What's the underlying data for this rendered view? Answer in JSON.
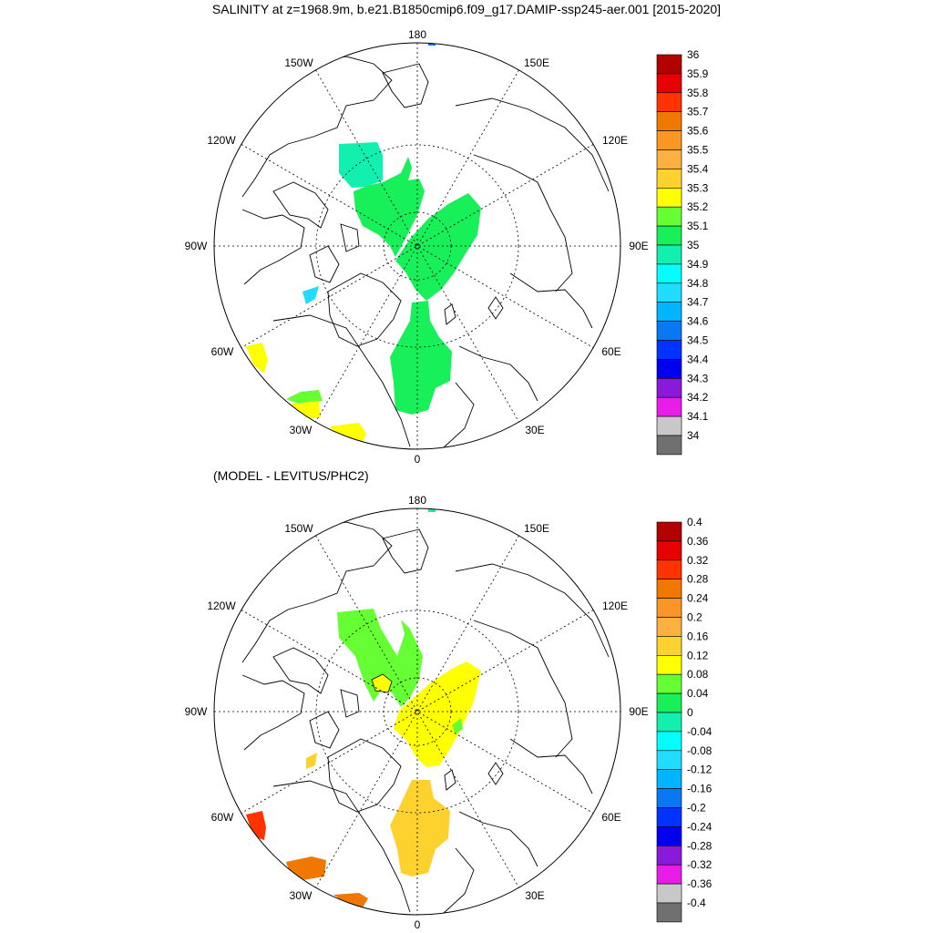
{
  "title": "SALINITY at z=1968.9m, b.e21.B1850cmip6.f09_g17.DAMIP-ssp245-aer.001 [2015-2020]",
  "subtitle": "(MODEL - LEVITUS/PHC2)",
  "map_labels": {
    "lon_180": "180",
    "lon_150w": "150W",
    "lon_150e": "150E",
    "lon_120w": "120W",
    "lon_120e": "120E",
    "lon_90w": "90W",
    "lon_90e": "90E",
    "lon_60w": "60W",
    "lon_60e": "60E",
    "lon_30w": "30W",
    "lon_30e": "30E",
    "lon_0": "0"
  },
  "top_colorbar": {
    "labels": [
      "36",
      "35.9",
      "35.8",
      "35.7",
      "35.6",
      "35.5",
      "35.4",
      "35.3",
      "35.2",
      "35.1",
      "35",
      "34.9",
      "34.8",
      "34.7",
      "34.6",
      "34.5",
      "34.4",
      "34.3",
      "34.2",
      "34.1",
      "34"
    ],
    "colors": [
      "#b30000",
      "#e60000",
      "#ff3300",
      "#f07800",
      "#fa9624",
      "#fcb040",
      "#fdd22e",
      "#ffff00",
      "#66ff33",
      "#18f05a",
      "#12f0b0",
      "#00ffff",
      "#20dcff",
      "#00b4ff",
      "#0a78f0",
      "#0033ff",
      "#0000ee",
      "#8a1ad8",
      "#e81ee8",
      "#c8c8c8",
      "#707070"
    ]
  },
  "bottom_colorbar": {
    "labels": [
      "0.4",
      "0.36",
      "0.32",
      "0.28",
      "0.24",
      "0.2",
      "0.16",
      "0.12",
      "0.08",
      "0.04",
      "0",
      "-0.04",
      "-0.08",
      "-0.12",
      "-0.16",
      "-0.2",
      "-0.24",
      "-0.28",
      "-0.32",
      "-0.36",
      "-0.4"
    ],
    "colors": [
      "#b30000",
      "#e60000",
      "#ff3300",
      "#f07800",
      "#fa9624",
      "#fcb040",
      "#fdd22e",
      "#ffff00",
      "#66ff33",
      "#18f05a",
      "#12f0b0",
      "#00ffff",
      "#20dcff",
      "#00b4ff",
      "#0a78f0",
      "#0033ff",
      "#0000ee",
      "#8a1ad8",
      "#e81ee8",
      "#c8c8c8",
      "#707070"
    ]
  }
}
